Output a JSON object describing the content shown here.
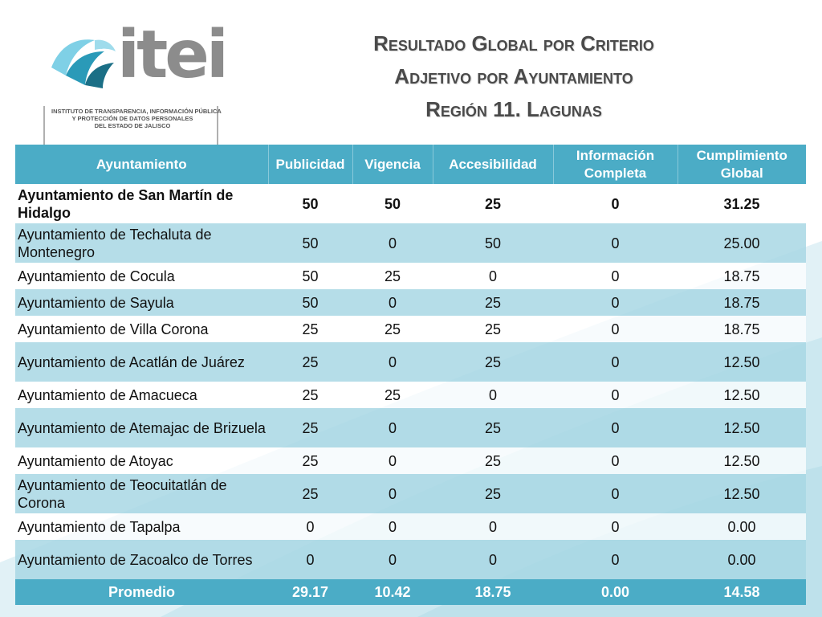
{
  "logo": {
    "text": "itei",
    "subtitle_lines": [
      "INSTITUTO DE TRANSPARENCIA, INFORMACIÓN PÚBLICA",
      "Y PROTECCIÓN DE DATOS PERSONALES",
      "DEL ESTADO DE JALISCO"
    ]
  },
  "title": {
    "line1": "Resultado Global por Criterio",
    "line2": "Adjetivo por Ayuntamiento",
    "line3": "Región 11. Lagunas"
  },
  "table": {
    "headers": [
      "Ayuntamiento",
      "Publicidad",
      "Vigencia",
      "Accesibilidad",
      "Información Completa",
      "Cumplimiento Global"
    ],
    "rows": [
      [
        "Ayuntamiento de San Martín de Hidalgo",
        "50",
        "50",
        "25",
        "0",
        "31.25"
      ],
      [
        "Ayuntamiento de Techaluta de Montenegro",
        "50",
        "0",
        "50",
        "0",
        "25.00"
      ],
      [
        "Ayuntamiento de Cocula",
        "50",
        "25",
        "0",
        "0",
        "18.75"
      ],
      [
        "Ayuntamiento de Sayula",
        "50",
        "0",
        "25",
        "0",
        "18.75"
      ],
      [
        "Ayuntamiento de Villa Corona",
        "25",
        "25",
        "25",
        "0",
        "18.75"
      ],
      [
        "Ayuntamiento de Acatlán de Juárez",
        "25",
        "0",
        "25",
        "0",
        "12.50"
      ],
      [
        "Ayuntamiento de Amacueca",
        "25",
        "25",
        "0",
        "0",
        "12.50"
      ],
      [
        "Ayuntamiento de Atemajac de Brizuela",
        "25",
        "0",
        "25",
        "0",
        "12.50"
      ],
      [
        "Ayuntamiento de Atoyac",
        "25",
        "0",
        "25",
        "0",
        "12.50"
      ],
      [
        "Ayuntamiento de Teocuitatlán de Corona",
        "25",
        "0",
        "25",
        "0",
        "12.50"
      ],
      [
        "Ayuntamiento de Tapalpa",
        "0",
        "0",
        "0",
        "0",
        "0.00"
      ],
      [
        "Ayuntamiento de Zacoalco de Torres",
        "0",
        "0",
        "0",
        "0",
        "0.00"
      ]
    ],
    "footer": [
      "Promedio",
      "29.17",
      "10.42",
      "18.75",
      "0.00",
      "14.58"
    ]
  },
  "colors": {
    "header_bg": "#4bacc6",
    "row_alt_bg": "#a8d7e4",
    "title_color": "#4a4a4a",
    "logo_text_color": "#8c8c8c"
  }
}
